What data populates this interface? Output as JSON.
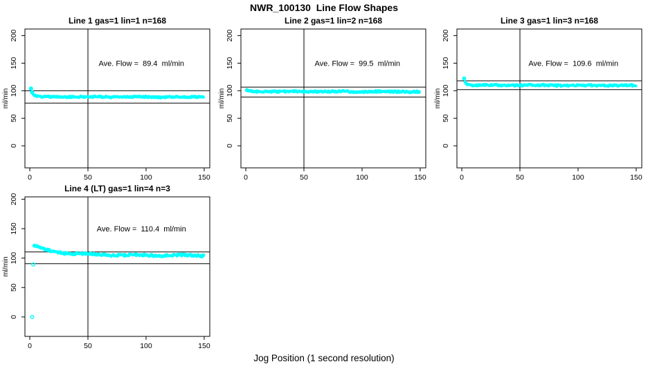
{
  "page_title": "NWR_100130  Line Flow Shapes",
  "x_axis_label": "Jog Position (1 second resolution)",
  "colors": {
    "points_cyan": "#00FFFF",
    "axis_black": "#000000",
    "background": "#FFFFFF"
  },
  "chart_data": [
    {
      "type": "scatter",
      "title": "Line 1 gas=1 lin=1 n=168",
      "annotation": "Ave. Flow =  89.4  ml/min",
      "ave_flow_ml_min": 89.4,
      "n": 168,
      "ylabel": "ml/min",
      "yticks": [
        0,
        50,
        100,
        150,
        200
      ],
      "xticks": [
        0,
        50,
        100,
        150
      ],
      "ref_hlines": [
        100,
        77.5
      ],
      "ref_vline_x": 50,
      "series_keypoints": [
        [
          1,
          104
        ],
        [
          2,
          97
        ],
        [
          3,
          93
        ],
        [
          4,
          91
        ],
        [
          6,
          90
        ],
        [
          10,
          89
        ],
        [
          80,
          88.8
        ],
        [
          150,
          88.5
        ]
      ],
      "lead_open_points": [
        [
          1,
          104
        ],
        [
          2,
          97
        ]
      ],
      "extra_points": [],
      "band_halfwidth": 1.6,
      "wave_amp": 0.3,
      "x_end": 150
    },
    {
      "type": "scatter",
      "title": "Line 2 gas=1 lin=2 n=168",
      "annotation": "Ave. Flow =  99.5  ml/min",
      "ave_flow_ml_min": 99.5,
      "n": 168,
      "ylabel": "ml/min",
      "yticks": [
        0,
        50,
        100,
        150,
        200
      ],
      "xticks": [
        0,
        50,
        100,
        150
      ],
      "ref_hlines": [
        106.5,
        88.5
      ],
      "ref_vline_x": 50,
      "series_keypoints": [
        [
          1,
          101
        ],
        [
          2,
          99.5
        ],
        [
          4,
          99
        ],
        [
          8,
          98.6
        ],
        [
          50,
          98.4
        ],
        [
          150,
          98.3
        ]
      ],
      "lead_open_points": [
        [
          1,
          101
        ]
      ],
      "extra_points": [],
      "band_halfwidth": 1.8,
      "wave_amp": 0.3,
      "x_end": 150
    },
    {
      "type": "scatter",
      "title": "Line 3 gas=1 lin=3 n=168",
      "annotation": "Ave. Flow =  109.6  ml/min",
      "ave_flow_ml_min": 109.6,
      "n": 168,
      "ylabel": "ml/min",
      "yticks": [
        0,
        50,
        100,
        150,
        200
      ],
      "xticks": [
        0,
        50,
        100,
        150
      ],
      "ref_hlines": [
        118,
        102
      ],
      "ref_vline_x": 50,
      "series_keypoints": [
        [
          2,
          122
        ],
        [
          3,
          114
        ],
        [
          4,
          112
        ],
        [
          6,
          111
        ],
        [
          10,
          110.2
        ],
        [
          80,
          109.8
        ],
        [
          150,
          109.5
        ]
      ],
      "lead_open_points": [
        [
          2,
          122
        ]
      ],
      "extra_points": [],
      "band_halfwidth": 1.7,
      "wave_amp": 0.3,
      "x_end": 150
    },
    {
      "type": "scatter",
      "title": "Line 4 (LT) gas=1 lin=4 n=3",
      "annotation": "Ave. Flow =  110.4  ml/min",
      "ave_flow_ml_min": 110.4,
      "n": 3,
      "ylabel": "ml/min",
      "yticks": [
        0,
        50,
        100,
        150,
        200
      ],
      "xticks": [
        0,
        50,
        100,
        150
      ],
      "ref_hlines": [
        110.5,
        90.5
      ],
      "ref_vline_x": 50,
      "series_keypoints": [
        [
          4,
          121
        ],
        [
          6,
          119
        ],
        [
          9,
          116.5
        ],
        [
          13,
          114
        ],
        [
          18,
          112
        ],
        [
          25,
          110
        ],
        [
          35,
          108
        ],
        [
          50,
          106.5
        ],
        [
          70,
          105.5
        ],
        [
          100,
          105
        ],
        [
          150,
          104.3
        ]
      ],
      "lead_open_points": [
        [
          4,
          121
        ]
      ],
      "extra_points": [
        [
          2,
          0
        ],
        [
          3,
          89
        ]
      ],
      "band_halfwidth": 2.0,
      "wave_amp": 0.9,
      "x_end": 150
    }
  ]
}
